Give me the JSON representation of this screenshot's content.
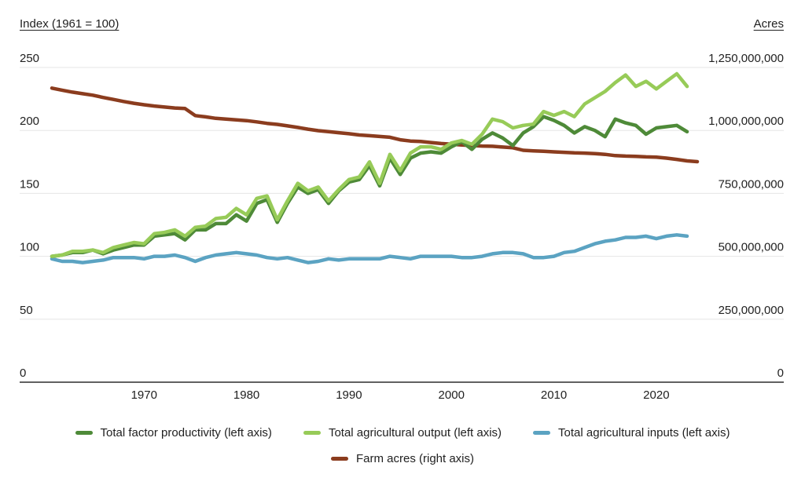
{
  "chart_data": {
    "type": "line",
    "title": "",
    "grid": true,
    "legend_position": "bottom",
    "x_axis": {
      "range": [
        1961,
        2024
      ],
      "ticks": [
        1970,
        1980,
        1990,
        2000,
        2010,
        2020
      ]
    },
    "y_axis_left": {
      "title": "Index (1961 = 100)",
      "range": [
        0,
        250
      ],
      "ticks": [
        0,
        50,
        100,
        150,
        200,
        250
      ],
      "tick_labels": [
        "0",
        "50",
        "100",
        "150",
        "200",
        "250"
      ]
    },
    "y_axis_right": {
      "title": "Acres",
      "range_millions": [
        0,
        1250
      ],
      "ticks_millions": [
        0,
        250,
        500,
        750,
        1000,
        1250
      ],
      "tick_labels": [
        "0",
        "250,000,000",
        "500,000,000",
        "750,000,000",
        "1,000,000,000",
        "1,250,000,000"
      ]
    },
    "series": [
      {
        "name": "Farm acres (right axis)",
        "axis": "right",
        "color": "#8b3c1e",
        "units": "million acres",
        "x_start": 1961,
        "x_end": 2024,
        "values": [
          1168,
          1160,
          1152,
          1146,
          1140,
          1131,
          1123,
          1115,
          1108,
          1102,
          1097,
          1093,
          1089,
          1087,
          1059,
          1054,
          1048,
          1045,
          1042,
          1039,
          1034,
          1028,
          1024,
          1018,
          1012,
          1005,
          999,
          995,
          991,
          987,
          982,
          979,
          976,
          973,
          963,
          958,
          956,
          952,
          948,
          945,
          942,
          940,
          938,
          937,
          934,
          931,
          921,
          919,
          917,
          915,
          913,
          911,
          910,
          908,
          905,
          900,
          898,
          897,
          895,
          894,
          890,
          885,
          879,
          876
        ]
      },
      {
        "name": "Total agricultural inputs (left axis)",
        "axis": "left",
        "color": "#5ba3c2",
        "units": "index (1961=100)",
        "x_start": 1961,
        "x_end": 2023,
        "values": [
          98,
          96,
          96,
          95,
          96,
          97,
          99,
          99,
          99,
          98,
          100,
          100,
          101,
          99,
          96,
          99,
          101,
          102,
          103,
          102,
          101,
          99,
          98,
          99,
          97,
          95,
          96,
          98,
          97,
          98,
          98,
          98,
          98,
          100,
          99,
          98,
          100,
          100,
          100,
          100,
          99,
          99,
          100,
          102,
          103,
          103,
          102,
          99,
          99,
          100,
          103,
          104,
          107,
          110,
          112,
          113,
          115,
          115,
          116,
          114,
          116,
          117,
          116
        ]
      },
      {
        "name": "Total factor productivity (left axis)",
        "axis": "left",
        "color": "#4e8a38",
        "units": "index (1961=100)",
        "x_start": 1961,
        "x_end": 2023,
        "values": [
          100,
          101,
          103,
          103,
          105,
          102,
          105,
          107,
          109,
          109,
          116,
          117,
          118,
          113,
          121,
          121,
          126,
          126,
          133,
          128,
          142,
          145,
          127,
          142,
          155,
          150,
          153,
          142,
          152,
          159,
          161,
          172,
          156,
          178,
          165,
          178,
          182,
          183,
          182,
          187,
          191,
          185,
          193,
          198,
          194,
          188,
          198,
          203,
          211,
          208,
          204,
          198,
          203,
          200,
          195,
          209,
          206,
          204,
          197,
          202,
          203,
          204,
          199
        ]
      },
      {
        "name": "Total agricultural output (left axis)",
        "axis": "left",
        "color": "#97cb58",
        "units": "index (1961=100)",
        "x_start": 1961,
        "x_end": 2023,
        "values": [
          100,
          101,
          104,
          104,
          105,
          103,
          107,
          109,
          111,
          110,
          118,
          119,
          121,
          116,
          123,
          124,
          130,
          131,
          138,
          133,
          146,
          148,
          129,
          144,
          158,
          152,
          155,
          144,
          153,
          161,
          163,
          175,
          158,
          181,
          168,
          182,
          187,
          187,
          185,
          190,
          192,
          189,
          197,
          209,
          207,
          202,
          204,
          205,
          215,
          212,
          215,
          211,
          221,
          226,
          231,
          238,
          244,
          235,
          239,
          233,
          239,
          245,
          235
        ]
      }
    ],
    "colors": {
      "grid": "#e6e6e6",
      "axis_baseline": "#616161",
      "text": "#212121"
    }
  },
  "legend": {
    "row1_order": [
      "tfp",
      "output",
      "inputs"
    ],
    "row2_order": [
      "acres"
    ]
  }
}
